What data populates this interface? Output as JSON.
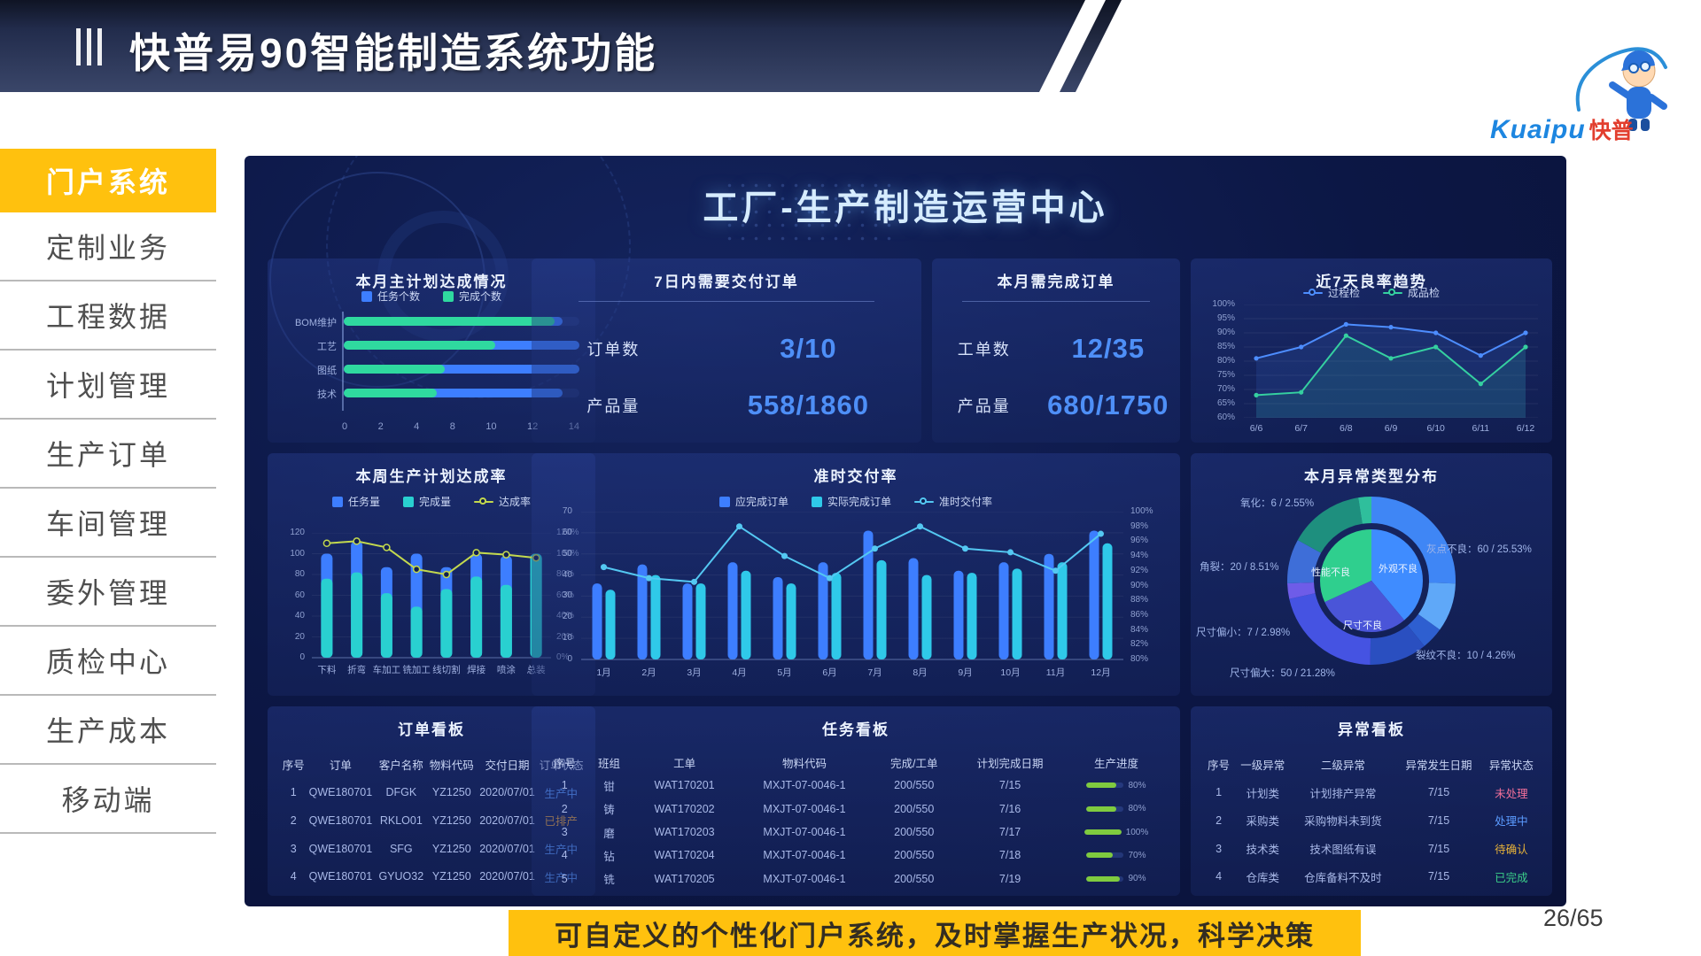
{
  "slide": {
    "title": "快普易90智能制造系统功能",
    "footer_banner": "可自定义的个性化门户系统，及时掌握生产状况，科学决策",
    "page": "26/65",
    "accent": "#FFC10E"
  },
  "logo": {
    "en": "Kuaipu",
    "cn": "快普"
  },
  "sidebar": {
    "active_index": 0,
    "items": [
      "门户系统",
      "定制业务",
      "工程数据",
      "计划管理",
      "生产订单",
      "车间管理",
      "委外管理",
      "质检中心",
      "生产成本",
      "移动端"
    ]
  },
  "dashboard": {
    "title": "工厂-生产制造运营中心"
  },
  "chart_data": [
    {
      "id": "monthly-master-plan",
      "type": "bar",
      "orientation": "horizontal",
      "title": "本月主计划达成情况",
      "categories": [
        "BOM维护",
        "工艺",
        "图纸",
        "技术"
      ],
      "series": [
        {
          "name": "任务个数",
          "color": "#3D7EFF",
          "values": [
            13,
            14,
            14,
            13
          ]
        },
        {
          "name": "完成个数",
          "color": "#2FD99F",
          "values": [
            12.5,
            9,
            6,
            5.5
          ]
        }
      ],
      "xlim": [
        0,
        14
      ],
      "x_ticks": [
        "0",
        "2",
        "4",
        "8",
        "10",
        "12",
        "14"
      ]
    },
    {
      "id": "deliver-7days",
      "type": "table",
      "title": "7日内需要交付订单",
      "metrics": [
        {
          "label": "订单数",
          "value": "3/10"
        },
        {
          "label": "产品量",
          "value": "558/1860"
        }
      ],
      "value_color": "#4E8FF7"
    },
    {
      "id": "month-complete-orders",
      "type": "table",
      "title": "本月需完成订单",
      "metrics": [
        {
          "label": "工单数",
          "value": "12/35"
        },
        {
          "label": "产品量",
          "value": "680/1750"
        }
      ],
      "value_color": "#4E8FF7"
    },
    {
      "id": "yield-trend-7days",
      "type": "line",
      "title": "近7天良率趋势",
      "x": [
        "6/6",
        "6/7",
        "6/8",
        "6/9",
        "6/10",
        "6/11",
        "6/12"
      ],
      "series": [
        {
          "name": "过程检",
          "color": "#4D8DFF",
          "values": [
            81,
            85,
            93,
            92,
            90,
            82,
            90
          ]
        },
        {
          "name": "成品检",
          "color": "#35D0A0",
          "values": [
            68,
            69,
            89,
            81,
            85,
            72,
            85
          ]
        }
      ],
      "ylim": [
        60,
        100
      ],
      "y_ticks": [
        "100%",
        "95%",
        "90%",
        "85%",
        "80%",
        "75%",
        "70%",
        "65%",
        "60%"
      ]
    },
    {
      "id": "weekly-plan-achievement",
      "type": "bar",
      "subtype": "bar+line",
      "title": "本周生产计划达成率",
      "categories": [
        "下料",
        "折弯",
        "车加工",
        "铣加工",
        "线切割",
        "焊接",
        "喷涂",
        "总装"
      ],
      "series": [
        {
          "name": "任务量",
          "chart": "bar",
          "color": "#3D7EFF",
          "values": [
            100,
            112,
            87,
            100,
            87,
            100,
            98,
            100
          ]
        },
        {
          "name": "完成量",
          "chart": "bar",
          "color": "#29D0D0",
          "values": [
            76,
            82,
            62,
            49,
            66,
            78,
            70,
            100
          ]
        },
        {
          "name": "达成率",
          "chart": "line",
          "color": "#C3D94E",
          "axis": "right",
          "values": [
            110,
            112,
            106,
            85,
            80,
            101,
            99,
            96
          ]
        }
      ],
      "ylim_left": [
        0,
        120
      ],
      "y_ticks_left": [
        "120",
        "100",
        "80",
        "60",
        "40",
        "20",
        "0"
      ],
      "y_ticks_right": [
        "120%",
        "100%",
        "80%",
        "60%",
        "40%",
        "20%",
        "0%"
      ]
    },
    {
      "id": "on-time-delivery",
      "type": "bar",
      "subtype": "bar+line",
      "title": "准时交付率",
      "categories": [
        "1月",
        "2月",
        "3月",
        "4月",
        "5月",
        "6月",
        "7月",
        "8月",
        "9月",
        "10月",
        "11月",
        "12月"
      ],
      "series": [
        {
          "name": "应完成订单",
          "chart": "bar",
          "color": "#3D7EFF",
          "values": [
            36,
            45,
            36,
            46,
            39,
            46,
            61,
            48,
            42,
            46,
            50,
            61
          ]
        },
        {
          "name": "实际完成订单",
          "chart": "bar",
          "color": "#2FC9E9",
          "values": [
            33,
            40,
            36,
            42,
            36,
            41,
            47,
            40,
            41,
            43,
            46,
            55
          ]
        },
        {
          "name": "准时交付率",
          "chart": "line",
          "color": "#54C8F2",
          "axis": "right",
          "values": [
            92.5,
            91,
            90.5,
            98,
            94,
            91,
            95,
            98,
            95,
            94.5,
            92,
            97
          ]
        }
      ],
      "ylim_left": [
        0,
        70
      ],
      "y_ticks_left": [
        "70",
        "60",
        "50",
        "40",
        "30",
        "20",
        "10",
        "0"
      ],
      "ylim_right": [
        80,
        100
      ],
      "y_ticks_right": [
        "100%",
        "98%",
        "96%",
        "94%",
        "92%",
        "90%",
        "88%",
        "86%",
        "84%",
        "82%",
        "80%"
      ]
    },
    {
      "id": "anomaly-type-distribution",
      "type": "pie",
      "title": "本月异常类型分布",
      "unit_total": 235,
      "labels": [
        {
          "name": "氧化",
          "value": 6,
          "pct": "2.55%"
        },
        {
          "name": "灰点不良",
          "value": 60,
          "pct": "25.53%"
        },
        {
          "name": "裂纹不良",
          "value": 10,
          "pct": "4.26%"
        },
        {
          "name": "尺寸偏大",
          "value": 50,
          "pct": "21.28%"
        },
        {
          "name": "尺寸偏小",
          "value": 7,
          "pct": "2.98%"
        },
        {
          "name": "角裂",
          "value": 20,
          "pct": "8.51%"
        }
      ],
      "inner_labels": [
        "性能不良",
        "外观不良",
        "尺寸不良"
      ],
      "outer_segments": [
        {
          "v": 60,
          "c": "#3F86F5"
        },
        {
          "v": 22,
          "c": "#5FA8F8"
        },
        {
          "v": 10,
          "c": "#2E5FD0"
        },
        {
          "v": 26,
          "c": "#2A4FC0"
        },
        {
          "v": 50,
          "c": "#4553E2"
        },
        {
          "v": 7,
          "c": "#6E5CE8"
        },
        {
          "v": 20,
          "c": "#3E6ED8"
        },
        {
          "v": 34,
          "c": "#1E8F7E"
        },
        {
          "v": 6,
          "c": "#2FBF9C"
        }
      ],
      "inner_segments": [
        {
          "v": 140,
          "c": "#3F8CFF"
        },
        {
          "v": 105,
          "c": "#4A55D8"
        },
        {
          "v": 115,
          "c": "#2FCF8E"
        }
      ]
    }
  ],
  "tables": {
    "orders": {
      "title": "订单看板",
      "columns": [
        "序号",
        "订单",
        "客户名称",
        "物料代码",
        "交付日期",
        "订单状态"
      ],
      "widths": [
        0.8,
        2.0,
        1.6,
        1.4,
        1.9,
        1.3
      ],
      "status_col": 5,
      "rows": [
        [
          "1",
          "QWE180701",
          "DFGK",
          "YZ1250",
          "2020/07/01",
          "生产中"
        ],
        [
          "2",
          "QWE180701",
          "RKLO01",
          "YZ1250",
          "2020/07/01",
          "已排产"
        ],
        [
          "3",
          "QWE180701",
          "SFG",
          "YZ1250",
          "2020/07/01",
          "生产中"
        ],
        [
          "4",
          "QWE180701",
          "GYUO32",
          "YZ1250",
          "2020/07/01",
          "生产中"
        ]
      ],
      "status_colors": {
        "生产中": "#5B9BFF",
        "已排产": "#E8A33D"
      }
    },
    "tasks": {
      "title": "任务看板",
      "columns": [
        "序号",
        "班组",
        "工单",
        "物料代码",
        "完成/工单",
        "计划完成日期",
        "生产进度"
      ],
      "widths": [
        0.6,
        0.7,
        1.5,
        2.0,
        1.2,
        1.6,
        1.5
      ],
      "progress_col": 6,
      "progress_color": "#7FCB3F",
      "rows": [
        [
          "1",
          "钳",
          "WAT170201",
          "MXJT-07-0046-1",
          "200/550",
          "7/15",
          "80%"
        ],
        [
          "2",
          "铸",
          "WAT170202",
          "MXJT-07-0046-1",
          "200/550",
          "7/16",
          "80%"
        ],
        [
          "3",
          "磨",
          "WAT170203",
          "MXJT-07-0046-1",
          "200/550",
          "7/17",
          "100%"
        ],
        [
          "4",
          "钻",
          "WAT170204",
          "MXJT-07-0046-1",
          "200/550",
          "7/18",
          "70%"
        ],
        [
          "5",
          "铣",
          "WAT170205",
          "MXJT-07-0046-1",
          "200/550",
          "7/19",
          "90%"
        ]
      ]
    },
    "anomalies": {
      "title": "异常看板",
      "columns": [
        "序号",
        "一级异常",
        "二级异常",
        "异常发生日期",
        "异常状态"
      ],
      "widths": [
        0.6,
        1.1,
        2.0,
        1.7,
        1.1
      ],
      "status_col": 4,
      "rows": [
        [
          "1",
          "计划类",
          "计划排产异常",
          "7/15",
          "未处理"
        ],
        [
          "2",
          "采购类",
          "采购物料未到货",
          "7/15",
          "处理中"
        ],
        [
          "3",
          "技术类",
          "技术图纸有误",
          "7/15",
          "待确认"
        ],
        [
          "4",
          "仓库类",
          "仓库备料不及时",
          "7/15",
          "已完成"
        ]
      ],
      "status_colors": {
        "未处理": "#F2709A",
        "处理中": "#5B9BFF",
        "待确认": "#E8B339",
        "已完成": "#3BD08A"
      }
    }
  }
}
